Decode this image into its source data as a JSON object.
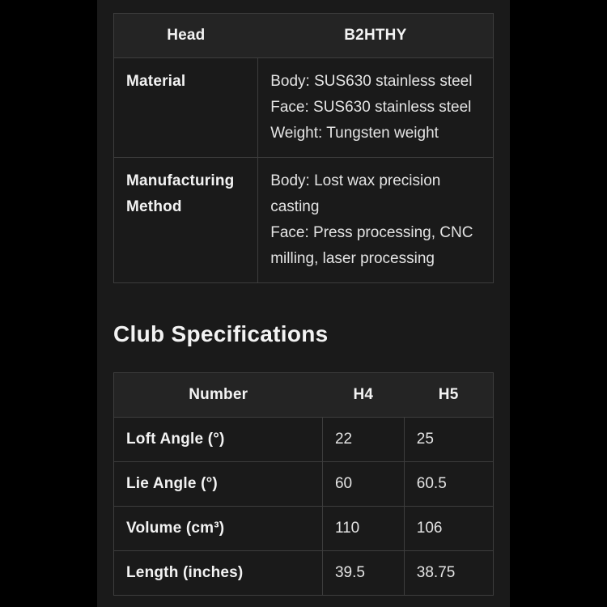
{
  "colors": {
    "page_bg": "#000000",
    "content_bg": "#1a1a1a",
    "header_row_bg": "#242424",
    "border": "#3d3d3d",
    "label_text": "#f3f3f3",
    "value_text": "#e4e4e4"
  },
  "head_table": {
    "header": {
      "label": "Head",
      "value": "B2HTHY"
    },
    "rows": [
      {
        "label": "Material",
        "lines": [
          "Body: SUS630 stainless steel",
          "Face: SUS630 stainless steel",
          "Weight: Tungsten weight"
        ]
      },
      {
        "label": "Manufacturing Method",
        "lines": [
          "Body: Lost wax precision casting",
          "Face: Press processing, CNC milling, laser processing"
        ]
      }
    ]
  },
  "section": {
    "title": "Club Specifications"
  },
  "spec_table": {
    "columns": {
      "number": "Number",
      "h4": "H4",
      "h5": "H5"
    },
    "rows": [
      {
        "label": "Loft Angle (°)",
        "h4": "22",
        "h5": "25"
      },
      {
        "label": "Lie Angle (°)",
        "h4": "60",
        "h5": "60.5"
      },
      {
        "label": "Volume (cm³)",
        "h4": "110",
        "h5": "106"
      },
      {
        "label": "Length (inches)",
        "h4": "39.5",
        "h5": "38.75"
      }
    ]
  }
}
